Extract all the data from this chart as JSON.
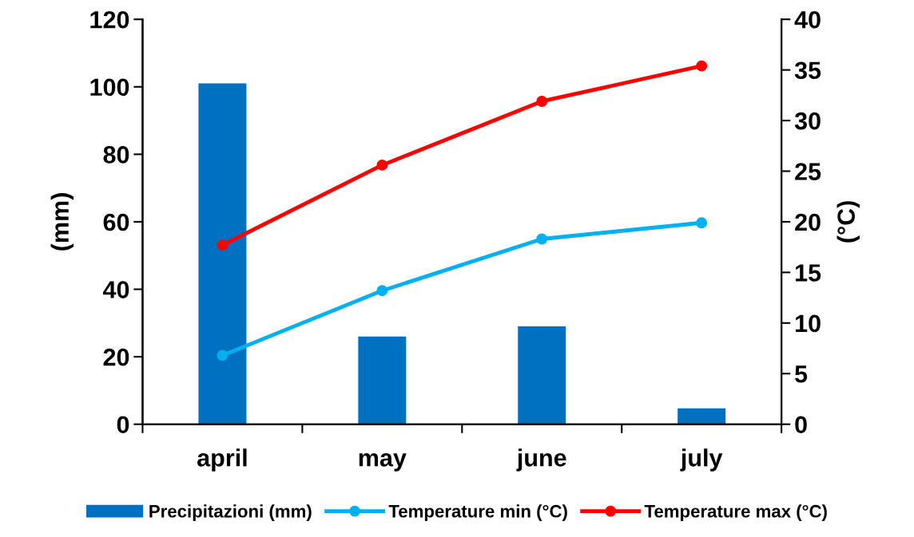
{
  "chart_data": {
    "type": "bar",
    "ylabel": "(mm)",
    "y2label": "(°C)",
    "categories": [
      "april",
      "may",
      "june",
      "july"
    ],
    "series": [
      {
        "name": "Precipitazioni (mm)",
        "color": "#0070c0",
        "values": [
          101,
          26,
          29,
          4.7
        ]
      },
      {
        "name": "Temperature min (°C)",
        "type": "line",
        "axis": "y2",
        "color": "#00b0f0",
        "values": [
          6.8,
          13.2,
          18.3,
          19.9
        ]
      },
      {
        "name": "Temperature max (°C)",
        "type": "line",
        "axis": "y2",
        "color": "#ff0000",
        "values": [
          17.7,
          25.6,
          31.9,
          35.4
        ]
      }
    ],
    "ylim": [
      0,
      120
    ],
    "yticks": [
      0,
      20,
      40,
      60,
      80,
      100,
      120
    ],
    "y2lim": [
      0,
      40
    ],
    "y2ticks": [
      0,
      5,
      10,
      15,
      20,
      25,
      30,
      35,
      40
    ],
    "grid": false,
    "legend": "bottom",
    "marker": "circle",
    "line_style": "solid"
  }
}
